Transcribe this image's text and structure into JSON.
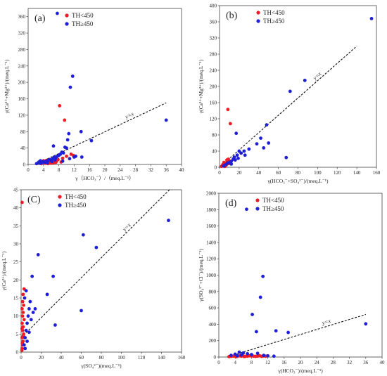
{
  "chart_data": [
    {
      "type": "scatter",
      "panel_label": "(a)",
      "xlabel": "γ（HCO₃⁻）/（meq.L⁻¹）",
      "ylabel": "γ(Ca²⁺+Mg²⁺)/(meq.L⁻¹)",
      "xlim": [
        0,
        40
      ],
      "ylim": [
        0,
        380
      ],
      "xticks": [
        "0",
        "4",
        "8",
        "12",
        "16",
        "20",
        "24",
        "28",
        "32",
        "36",
        "40"
      ],
      "yticks": [
        "0",
        "40",
        "80",
        "120",
        "160",
        "200",
        "240",
        "280",
        "320",
        "360"
      ],
      "xtick_values": [
        0,
        4,
        8,
        12,
        16,
        20,
        24,
        28,
        32,
        36,
        40
      ],
      "ytick_values": [
        0,
        40,
        80,
        120,
        160,
        200,
        240,
        280,
        320,
        360
      ],
      "legend_position": "top-left",
      "reference_line": {
        "label": "y=x",
        "points": [
          [
            2.5,
            2.5
          ],
          [
            36,
            150
          ]
        ]
      },
      "series": [
        {
          "name": "TH<450",
          "color": "#ee1c25",
          "points": [
            [
              2.6,
              3
            ],
            [
              3.0,
              5
            ],
            [
              3.4,
              2
            ],
            [
              3.8,
              6
            ],
            [
              4.2,
              4
            ],
            [
              4.6,
              3
            ],
            [
              5.0,
              7
            ],
            [
              5.4,
              5
            ],
            [
              5.8,
              8
            ],
            [
              6.2,
              6
            ],
            [
              6.6,
              4
            ],
            [
              7.0,
              10
            ],
            [
              7.4,
              8
            ],
            [
              7.8,
              12
            ],
            [
              8.2,
              143
            ],
            [
              8.6,
              6
            ],
            [
              9.0,
              15
            ],
            [
              9.5,
              108
            ],
            [
              10.0,
              20
            ],
            [
              11.2,
              25
            ],
            [
              11.8,
              22
            ],
            [
              4.0,
              9
            ],
            [
              5.2,
              2
            ],
            [
              6.0,
              3
            ],
            [
              7.2,
              5
            ],
            [
              3.2,
              8
            ],
            [
              4.8,
              10
            ]
          ]
        },
        {
          "name": "TH≥450",
          "color": "#1f1fd8",
          "points": [
            [
              2.2,
              2
            ],
            [
              2.8,
              6
            ],
            [
              3.2,
              9
            ],
            [
              3.6,
              4
            ],
            [
              4.0,
              7
            ],
            [
              4.4,
              5
            ],
            [
              4.8,
              8
            ],
            [
              5.2,
              10
            ],
            [
              5.6,
              12
            ],
            [
              6.0,
              9
            ],
            [
              6.4,
              14
            ],
            [
              6.6,
              45
            ],
            [
              6.8,
              18
            ],
            [
              7.2,
              16
            ],
            [
              7.6,
              20
            ],
            [
              8.0,
              22
            ],
            [
              8.4,
              25
            ],
            [
              8.8,
              30
            ],
            [
              9.2,
              28
            ],
            [
              9.6,
              42
            ],
            [
              10.0,
              40
            ],
            [
              10.3,
              60
            ],
            [
              10.6,
              75
            ],
            [
              11.0,
              188
            ],
            [
              11.6,
              215
            ],
            [
              12.0,
              18
            ],
            [
              12.4,
              20
            ],
            [
              13.8,
              80
            ],
            [
              14.0,
              18
            ],
            [
              16.5,
              58
            ],
            [
              7.6,
              368
            ],
            [
              36.0,
              108
            ],
            [
              3.0,
              3
            ],
            [
              5.0,
              4
            ],
            [
              6.2,
              7
            ],
            [
              7.0,
              11
            ],
            [
              9.0,
              8
            ],
            [
              10.8,
              14
            ]
          ]
        }
      ]
    },
    {
      "type": "scatter",
      "panel_label": "(b)",
      "xlabel": "γ(HCO₃⁻+SO₄²⁻)/(meq.L⁻¹)",
      "ylabel": "γ(Ca²⁺+Mg²⁺)/(meq.L⁻¹)",
      "xlim": [
        0,
        160
      ],
      "ylim": [
        0,
        400
      ],
      "xticks": [
        "0",
        "20",
        "40",
        "60",
        "80",
        "100",
        "120",
        "140",
        "160"
      ],
      "yticks": [
        "0",
        "40",
        "80",
        "120",
        "160",
        "200",
        "240",
        "280",
        "320",
        "360",
        "400"
      ],
      "xtick_values": [
        0,
        20,
        40,
        60,
        80,
        100,
        120,
        140,
        160
      ],
      "ytick_values": [
        0,
        40,
        80,
        120,
        160,
        200,
        240,
        280,
        320,
        360,
        400
      ],
      "legend_position": "top-left",
      "reference_line": {
        "label": "y=x",
        "points": [
          [
            0,
            0
          ],
          [
            140,
            300
          ]
        ]
      },
      "series": [
        {
          "name": "TH<450",
          "color": "#ee1c25",
          "points": [
            [
              2,
              2
            ],
            [
              3,
              5
            ],
            [
              4,
              3
            ],
            [
              5,
              8
            ],
            [
              6,
              10
            ],
            [
              7,
              6
            ],
            [
              8,
              12
            ],
            [
              9,
              20
            ],
            [
              10,
              15
            ],
            [
              11,
              108
            ],
            [
              8.5,
              143
            ],
            [
              4.5,
              12
            ],
            [
              6,
              4
            ],
            [
              7.5,
              18
            ],
            [
              3.5,
              7
            ],
            [
              5.5,
              2
            ],
            [
              9.5,
              9
            ]
          ]
        },
        {
          "name": "TH≥450",
          "color": "#1f1fd8",
          "points": [
            [
              4,
              3
            ],
            [
              6,
              6
            ],
            [
              8,
              10
            ],
            [
              10,
              12
            ],
            [
              12,
              15
            ],
            [
              14,
              20
            ],
            [
              16,
              18
            ],
            [
              18,
              30
            ],
            [
              20,
              40
            ],
            [
              22,
              35
            ],
            [
              25,
              40
            ],
            [
              30,
              45
            ],
            [
              38,
              58
            ],
            [
              42,
              72
            ],
            [
              45,
              48
            ],
            [
              48,
              105
            ],
            [
              50,
              60
            ],
            [
              68,
              24
            ],
            [
              72,
              188
            ],
            [
              87,
              215
            ],
            [
              155,
              368
            ],
            [
              12,
              8
            ],
            [
              15,
              25
            ],
            [
              17,
              84
            ],
            [
              19,
              22
            ],
            [
              26,
              30
            ]
          ]
        }
      ]
    },
    {
      "type": "scatter",
      "panel_label": "(C)",
      "xlabel": "γ(SO₄²⁻)(meq.L⁻¹)",
      "ylabel": "γ(Ca²⁺)/(meq.L⁻¹)",
      "xlim": [
        0,
        160
      ],
      "ylim": [
        0,
        45
      ],
      "xticks": [
        "0",
        "20",
        "40",
        "60",
        "80",
        "100",
        "120",
        "140",
        "160"
      ],
      "yticks": [
        "0",
        "5",
        "10",
        "15",
        "20",
        "25",
        "30",
        "35",
        "40",
        "45"
      ],
      "xtick_values": [
        0,
        20,
        40,
        60,
        80,
        100,
        120,
        140,
        160
      ],
      "ytick_values": [
        0,
        5,
        10,
        15,
        20,
        25,
        30,
        35,
        40,
        45
      ],
      "legend_position": "top-left",
      "reference_line": {
        "label": "y=x",
        "points": [
          [
            0,
            4
          ],
          [
            148,
            45
          ]
        ]
      },
      "series": [
        {
          "name": "TH<450",
          "color": "#ee1c25",
          "points": [
            [
              1,
              1
            ],
            [
              1.5,
              2
            ],
            [
              2,
              3
            ],
            [
              1,
              4
            ],
            [
              2.5,
              5
            ],
            [
              1.5,
              6
            ],
            [
              2,
              7
            ],
            [
              1,
              8
            ],
            [
              3,
              9
            ],
            [
              1.5,
              10
            ],
            [
              2,
              11
            ],
            [
              1,
              12
            ],
            [
              2.5,
              13
            ],
            [
              1.5,
              14
            ],
            [
              2,
              16
            ],
            [
              3,
              17.5
            ],
            [
              1,
              41.5
            ],
            [
              0.8,
              0.5
            ],
            [
              1.2,
              2.5
            ],
            [
              2.2,
              4.5
            ],
            [
              0.9,
              6.5
            ]
          ]
        },
        {
          "name": "TH≥450",
          "color": "#1f1fd8",
          "points": [
            [
              3,
              2
            ],
            [
              4,
              4
            ],
            [
              5,
              6
            ],
            [
              6,
              8
            ],
            [
              7,
              10
            ],
            [
              8,
              12
            ],
            [
              9,
              14
            ],
            [
              10,
              9
            ],
            [
              11,
              21
            ],
            [
              14,
              12
            ],
            [
              17,
              27
            ],
            [
              26,
              16
            ],
            [
              32,
              21
            ],
            [
              34,
              7.5
            ],
            [
              60,
              11.5
            ],
            [
              62,
              32.5
            ],
            [
              75,
              29
            ],
            [
              147,
              36.5
            ],
            [
              5,
              17
            ],
            [
              4,
              1
            ],
            [
              6,
              3
            ],
            [
              8,
              5.5
            ],
            [
              12,
              11
            ],
            [
              3.5,
              15
            ]
          ]
        }
      ]
    },
    {
      "type": "scatter",
      "panel_label": "(d)",
      "xlabel": "γ(HCO₃⁻)/(meq.L⁻¹)",
      "ylabel": "γ(SO₄²⁻+Cl⁻)/(meq.L⁻¹)",
      "xlim": [
        0,
        40
      ],
      "ylim": [
        0,
        2000
      ],
      "xticks": [
        "0",
        "4",
        "8",
        "12",
        "16",
        "20",
        "24",
        "28",
        "32",
        "36",
        "40"
      ],
      "yticks": [
        "0",
        "200",
        "400",
        "600",
        "800",
        "1000",
        "1200",
        "1400",
        "1600",
        "1800",
        "2000"
      ],
      "xtick_values": [
        0,
        4,
        8,
        12,
        16,
        20,
        24,
        28,
        32,
        36,
        40
      ],
      "ytick_values": [
        0,
        200,
        400,
        600,
        800,
        1000,
        1200,
        1400,
        1600,
        1800,
        2000
      ],
      "legend_position": "top-left",
      "reference_line": {
        "label": "y=x",
        "points": [
          [
            2,
            0
          ],
          [
            36,
            520
          ]
        ]
      },
      "series": [
        {
          "name": "TH<450",
          "color": "#ee1c25",
          "points": [
            [
              2.5,
              5
            ],
            [
              3,
              8
            ],
            [
              3.5,
              10
            ],
            [
              4,
              12
            ],
            [
              4.5,
              8
            ],
            [
              5,
              15
            ],
            [
              5.5,
              10
            ],
            [
              6,
              12
            ],
            [
              6.5,
              8
            ],
            [
              7,
              10
            ],
            [
              7.5,
              15
            ],
            [
              8,
              12
            ],
            [
              8.5,
              10
            ],
            [
              9,
              8
            ],
            [
              9.5,
              10
            ],
            [
              10,
              15
            ],
            [
              10.5,
              8
            ],
            [
              11,
              12
            ],
            [
              11.5,
              10
            ],
            [
              4.2,
              4
            ],
            [
              6.2,
              6
            ]
          ]
        },
        {
          "name": "TH≥450",
          "color": "#1f1fd8",
          "points": [
            [
              3,
              20
            ],
            [
              4,
              35
            ],
            [
              5,
              60
            ],
            [
              6,
              50
            ],
            [
              7,
              40
            ],
            [
              8,
              30
            ],
            [
              6.8,
              1805
            ],
            [
              8.2,
              520
            ],
            [
              9.2,
              310
            ],
            [
              10.2,
              730
            ],
            [
              10.8,
              985
            ],
            [
              14,
              320
            ],
            [
              17,
              300
            ],
            [
              36,
              405
            ],
            [
              4.5,
              15
            ],
            [
              5.5,
              25
            ],
            [
              9.5,
              45
            ],
            [
              11,
              20
            ],
            [
              12,
              15
            ],
            [
              13.5,
              10
            ]
          ]
        }
      ]
    }
  ]
}
